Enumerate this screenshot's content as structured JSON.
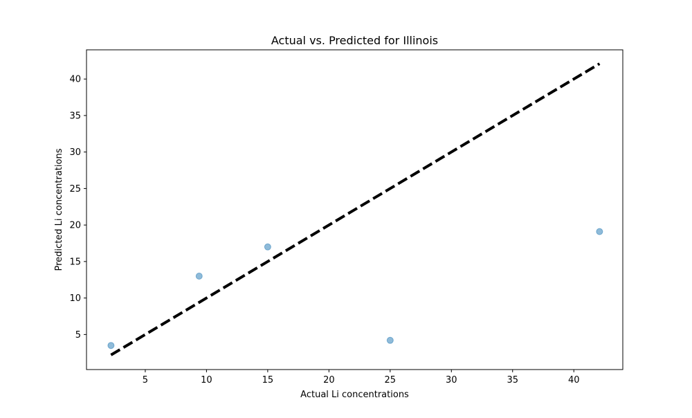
{
  "chart_data": {
    "type": "scatter",
    "title": "Actual vs. Predicted for Illinois",
    "xlabel": "Actual Li concentrations",
    "ylabel": "Predicted Li concentrations",
    "xlim": [
      0.2,
      44.0
    ],
    "ylim": [
      0.2,
      44.0
    ],
    "xticks": [
      5,
      10,
      15,
      20,
      25,
      30,
      35,
      40
    ],
    "yticks": [
      5,
      10,
      15,
      20,
      25,
      30,
      35,
      40
    ],
    "grid": false,
    "series": [
      {
        "points": [
          {
            "x": 2.2,
            "y": 3.5
          },
          {
            "x": 9.4,
            "y": 13.0
          },
          {
            "x": 15.0,
            "y": 17.0
          },
          {
            "x": 25.0,
            "y": 4.2
          },
          {
            "x": 42.1,
            "y": 19.1
          }
        ],
        "color": "#1f77b4",
        "alpha": 0.5
      }
    ],
    "reference_line": {
      "x": [
        2.2,
        42.1
      ],
      "y": [
        2.2,
        42.1
      ],
      "color": "#000000",
      "style": "dashed"
    }
  }
}
